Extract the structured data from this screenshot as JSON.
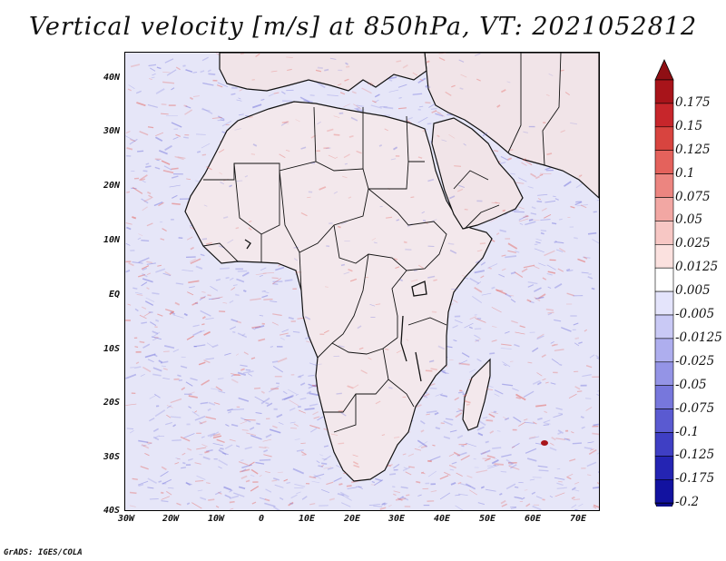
{
  "title": "Vertical velocity [m/s] at 850hPa, VT: 2021052812",
  "credit": "GrADS: IGES/COLA",
  "y_axis_labels": [
    "40N",
    "30N",
    "20N",
    "10N",
    "EQ",
    "10S",
    "20S",
    "30S",
    "40S"
  ],
  "x_axis_labels": [
    "30W",
    "20W",
    "10W",
    "0",
    "10E",
    "20E",
    "30E",
    "40E",
    "50E",
    "60E",
    "70E"
  ],
  "colorbar": {
    "labels": [
      "0.175",
      "0.15",
      "0.125",
      "0.1",
      "0.075",
      "0.05",
      "0.025",
      "0.0125",
      "0.005",
      "-0.005",
      "-0.0125",
      "-0.025",
      "-0.05",
      "-0.075",
      "-0.1",
      "-0.125",
      "-0.175",
      "-0.2"
    ],
    "colors": [
      "#a8141a",
      "#c7262b",
      "#d8443f",
      "#e4625c",
      "#ec8580",
      "#f2a7a3",
      "#f7c7c4",
      "#fbe1df",
      "#ffffff",
      "#e4e4fb",
      "#c9c9f5",
      "#aeaeee",
      "#9494e6",
      "#7777dc",
      "#5a5ad1",
      "#3f3fc4",
      "#2424b3",
      "#1212a0"
    ],
    "top_arrow_color": "#8f0f14",
    "bottom_arrow_color": "#0b0b8a"
  },
  "map_colors": {
    "ocean_base": "#e6e6f8",
    "land_base": "#f3e8ec",
    "ascent": "#e4625c",
    "descent": "#7777dc",
    "boundary": "#111111"
  }
}
